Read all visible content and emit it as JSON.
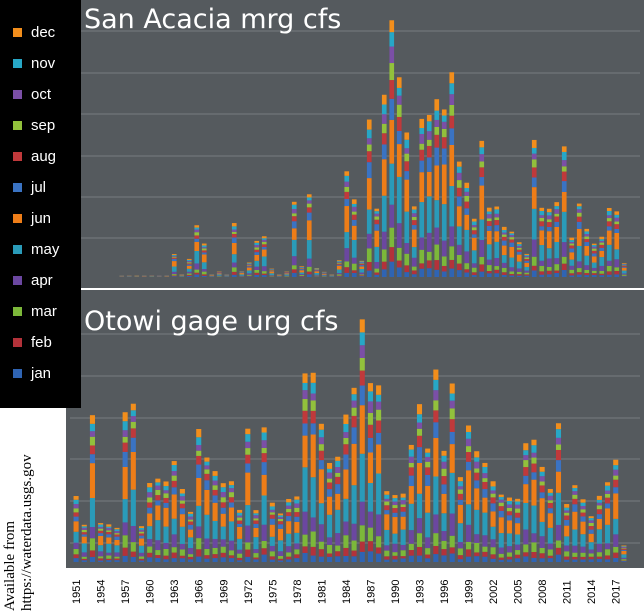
{
  "source_note": [
    "Available from",
    "https://waterdata.usgs.gov"
  ],
  "legend": [
    {
      "label": "dec",
      "color": "#f28e1c"
    },
    {
      "label": "nov",
      "color": "#27a7c6"
    },
    {
      "label": "oct",
      "color": "#7b4fa6"
    },
    {
      "label": "sep",
      "color": "#92c13c"
    },
    {
      "label": "aug",
      "color": "#c0393b"
    },
    {
      "label": "jul",
      "color": "#3a73c3"
    },
    {
      "label": "jun",
      "color": "#ee7d18"
    },
    {
      "label": "may",
      "color": "#2a9bb9"
    },
    {
      "label": "apr",
      "color": "#6b47a0"
    },
    {
      "label": "mar",
      "color": "#7cb83a"
    },
    {
      "label": "feb",
      "color": "#b3323a"
    },
    {
      "label": "jan",
      "color": "#2f64b3"
    }
  ],
  "x_tick_labels": [
    "1951",
    "1954",
    "1957",
    "1960",
    "1963",
    "1966",
    "1969",
    "1972",
    "1975",
    "1978",
    "1981",
    "1984",
    "1987",
    "1990",
    "1993",
    "1996",
    "1999",
    "2002",
    "2005",
    "2008",
    "2011",
    "2014",
    "2017"
  ],
  "chart_data": [
    {
      "type": "bar",
      "stacked": true,
      "title": "San Acacia mrg cfs",
      "years_start": 1951,
      "years_end": 2018,
      "totals_relative": [
        0,
        0,
        0,
        0,
        0,
        0,
        0,
        0.08,
        0.01,
        0.07,
        0.19,
        0.12,
        0.01,
        0.02,
        0.01,
        0.2,
        0.02,
        0.05,
        0.14,
        0.15,
        0.03,
        0.01,
        0.02,
        0.28,
        0.04,
        0.29,
        0.03,
        0.02,
        0.01,
        0.06,
        0.39,
        0.28,
        0.06,
        0.59,
        0.24,
        0.6,
        1.0,
        0.74,
        0.52,
        0.26,
        0.57,
        0.6,
        0.67,
        0.59,
        0.66,
        0.45,
        0.35,
        0.21,
        0.5,
        0.25,
        0.26,
        0.19,
        0.16,
        0.11,
        0.09,
        0.51,
        0.25,
        0.25,
        0.27,
        0.48,
        0.15,
        0.26,
        0.15,
        0.13,
        0.15,
        0.25,
        0.24,
        0.05
      ],
      "ylabel": "",
      "xlabel": ""
    },
    {
      "type": "bar",
      "stacked": true,
      "title": "Otowi gage urg cfs",
      "years_start": 1951,
      "years_end": 2018,
      "totals_relative": [
        0.3,
        0.16,
        0.62,
        0.17,
        0.16,
        0.15,
        0.65,
        0.65,
        0.15,
        0.36,
        0.36,
        0.34,
        0.44,
        0.31,
        0.22,
        0.58,
        0.43,
        0.37,
        0.36,
        0.35,
        0.22,
        0.58,
        0.22,
        0.59,
        0.26,
        0.2,
        0.25,
        0.3,
        0.82,
        0.8,
        0.6,
        0.42,
        0.46,
        0.65,
        0.72,
        0.94,
        0.82,
        0.77,
        0.3,
        0.29,
        0.29,
        0.51,
        0.7,
        0.47,
        0.73,
        0.51,
        0.78,
        0.36,
        0.59,
        0.47,
        0.43,
        0.36,
        0.28,
        0.24,
        0.29,
        0.52,
        0.52,
        0.41,
        0.31,
        0.6,
        0.26,
        0.32,
        0.23,
        0.21,
        0.29,
        0.34,
        0.44,
        0.07
      ]
    }
  ]
}
